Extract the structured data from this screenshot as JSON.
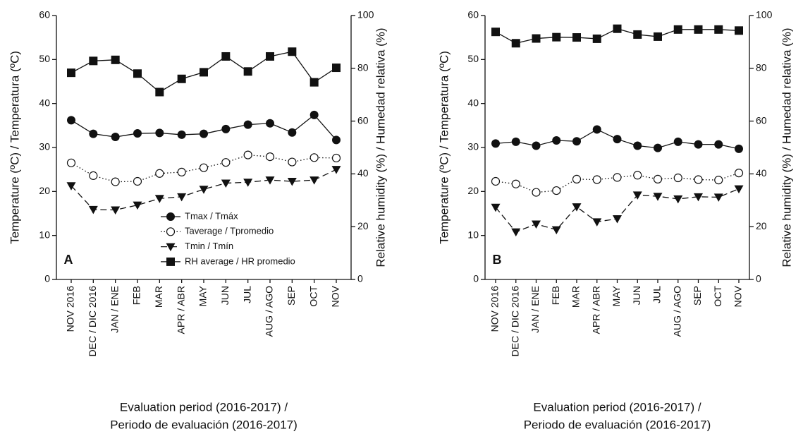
{
  "chart_data": [
    {
      "type": "line",
      "panel_label": "A",
      "legend": "lower right",
      "xlabel": [
        "Evaluation period (2016-2017) /",
        "Periodo de evaluación (2016-2017)"
      ],
      "ylabel": "Temperature (ºC) / Temperatura (ºC)",
      "y2label": "Relative humidity (%) / Humedad relativa (%)",
      "categories": [
        "NOV 2016",
        "DEC / DIC 2016",
        "JAN / ENE",
        "FEB",
        "MAR",
        "APR / ABR",
        "MAY",
        "JUN",
        "JUL",
        "AUG / AGO",
        "SEP",
        "OCT",
        "NOV"
      ],
      "ylim": [
        0,
        60
      ],
      "yticks": [
        0,
        10,
        20,
        30,
        40,
        50,
        60
      ],
      "y2lim": [
        0,
        100
      ],
      "y2ticks": [
        0,
        20,
        40,
        60,
        80,
        100
      ],
      "series": [
        {
          "name": "Tmax / Tmáx",
          "color": "#111111",
          "marker": "circle",
          "linestyle": "solid",
          "values": [
            36.2,
            33.1,
            32.4,
            33.2,
            33.3,
            32.9,
            33.1,
            34.2,
            35.2,
            35.5,
            33.4,
            37.4,
            31.7
          ]
        },
        {
          "name": "Taverage / Tpromedio",
          "color": "#111111",
          "marker": "open-circle",
          "linestyle": "dotted",
          "values": [
            26.5,
            23.6,
            22.2,
            22.3,
            24.1,
            24.4,
            25.4,
            26.6,
            28.3,
            27.9,
            26.7,
            27.7,
            27.6
          ]
        },
        {
          "name": "Tmin / Tmín",
          "color": "#111111",
          "marker": "triangle-down",
          "linestyle": "dashed",
          "values": [
            21.3,
            15.9,
            15.8,
            16.9,
            18.4,
            18.8,
            20.5,
            21.9,
            22.1,
            22.6,
            22.3,
            22.6,
            25.0
          ]
        },
        {
          "name": "RH average / HR promedio",
          "color": "#111111",
          "marker": "square",
          "linestyle": "solid",
          "axis": "y2",
          "values": [
            78.3,
            82.8,
            83.2,
            78.0,
            71.0,
            76.0,
            78.5,
            84.5,
            78.8,
            84.5,
            86.3,
            74.7,
            80.2
          ]
        }
      ]
    },
    {
      "type": "line",
      "panel_label": "B",
      "xlabel": [
        "Evaluation period (2016-2017) /",
        "Periodo de evaluación (2016-2017)"
      ],
      "ylabel": "Temperature (ºC) / Temperatura (ºC)",
      "y2label": "Relative humidity (%) / Humedad relativa (%)",
      "categories": [
        "NOV 2016",
        "DEC / DIC 2016",
        "JAN / ENE",
        "FEB",
        "MAR",
        "APR / ABR",
        "MAY",
        "JUN",
        "JUL",
        "AUG / AGO",
        "SEP",
        "OCT",
        "NOV"
      ],
      "ylim": [
        0,
        60
      ],
      "yticks": [
        0,
        10,
        20,
        30,
        40,
        50,
        60
      ],
      "y2lim": [
        0,
        100
      ],
      "y2ticks": [
        0,
        20,
        40,
        60,
        80,
        100
      ],
      "series": [
        {
          "color": "#111111",
          "marker": "circle",
          "linestyle": "solid",
          "values": [
            30.9,
            31.3,
            30.4,
            31.6,
            31.4,
            34.1,
            31.9,
            30.4,
            29.9,
            31.3,
            30.7,
            30.7,
            29.7
          ]
        },
        {
          "color": "#111111",
          "marker": "open-circle",
          "linestyle": "dotted",
          "values": [
            22.3,
            21.7,
            19.8,
            20.2,
            22.8,
            22.7,
            23.2,
            23.7,
            22.8,
            23.1,
            22.7,
            22.6,
            24.2
          ]
        },
        {
          "color": "#111111",
          "marker": "triangle-down",
          "linestyle": "dashed",
          "values": [
            16.4,
            10.8,
            12.6,
            11.3,
            16.5,
            13.1,
            13.8,
            19.2,
            18.9,
            18.3,
            18.8,
            18.7,
            20.6
          ]
        },
        {
          "color": "#111111",
          "marker": "square",
          "linestyle": "solid",
          "axis": "y2",
          "values": [
            93.8,
            89.5,
            91.3,
            91.8,
            91.7,
            91.2,
            95.0,
            92.8,
            92.0,
            94.7,
            94.7,
            94.7,
            94.3
          ]
        }
      ]
    }
  ]
}
